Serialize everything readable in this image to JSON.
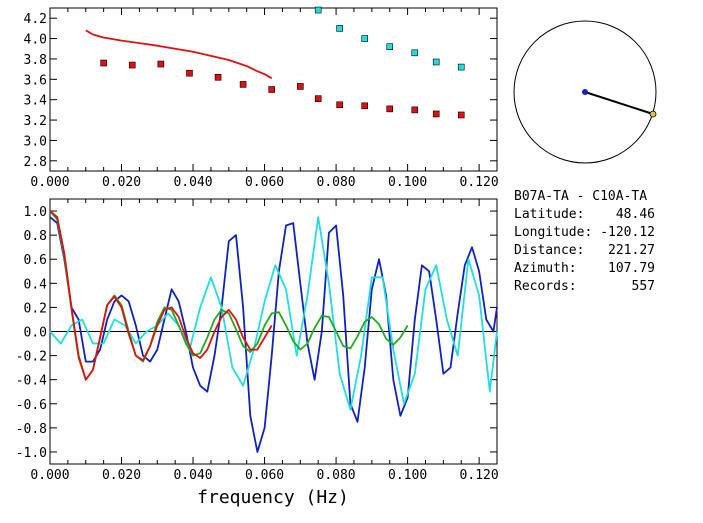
{
  "chart_data": [
    {
      "type": "scatter",
      "xlim": [
        0,
        0.125
      ],
      "ylim": [
        2.7,
        4.3
      ],
      "x_ticks": [
        "0.000",
        "0.020",
        "0.040",
        "0.060",
        "0.080",
        "0.100",
        "0.120"
      ],
      "y_ticks": [
        "2.8",
        "3.0",
        "3.2",
        "3.4",
        "3.6",
        "3.8",
        "4.0",
        "4.2"
      ],
      "grid": false,
      "series": [
        {
          "marker": "square",
          "color": "#dd1111",
          "x": [
            0.015,
            0.023,
            0.031,
            0.039,
            0.047,
            0.054,
            0.062,
            0.07,
            0.075,
            0.081,
            0.088,
            0.095,
            0.102,
            0.108,
            0.115
          ],
          "y": [
            3.76,
            3.74,
            3.75,
            3.66,
            3.62,
            3.55,
            3.5,
            3.53,
            3.41,
            3.35,
            3.34,
            3.31,
            3.3,
            3.26,
            3.25
          ]
        },
        {
          "marker": "square",
          "color": "#22dddd",
          "x": [
            0.075,
            0.081,
            0.088,
            0.095,
            0.102,
            0.108,
            0.115
          ],
          "y": [
            4.28,
            4.1,
            4.0,
            3.92,
            3.86,
            3.77,
            3.72
          ]
        },
        {
          "line": true,
          "color": "#dd1111",
          "x": [
            0.01,
            0.012,
            0.015,
            0.02,
            0.025,
            0.03,
            0.035,
            0.04,
            0.045,
            0.05,
            0.055,
            0.058,
            0.06,
            0.062
          ],
          "y": [
            4.08,
            4.04,
            4.01,
            3.98,
            3.955,
            3.93,
            3.9,
            3.87,
            3.83,
            3.79,
            3.73,
            3.68,
            3.65,
            3.61
          ]
        }
      ]
    },
    {
      "type": "line",
      "xlim": [
        0,
        0.125
      ],
      "ylim": [
        -1.1,
        1.1
      ],
      "x_ticks": [
        "0.000",
        "0.020",
        "0.040",
        "0.060",
        "0.080",
        "0.100",
        "0.120"
      ],
      "y_ticks": [
        "1.0",
        "0.8",
        "0.6",
        "0.4",
        "0.2",
        "0.0",
        "-0.2",
        "-0.4",
        "-0.6",
        "-0.8",
        "-1.0"
      ],
      "xlabel": "frequency (Hz)",
      "reference_line_y": 0,
      "series": [
        {
          "color": "#1122bb",
          "x": [
            0.0,
            0.002,
            0.004,
            0.006,
            0.008,
            0.01,
            0.012,
            0.014,
            0.016,
            0.018,
            0.02,
            0.022,
            0.024,
            0.026,
            0.028,
            0.03,
            0.032,
            0.034,
            0.036,
            0.038,
            0.04,
            0.042,
            0.044,
            0.046,
            0.048,
            0.05,
            0.052,
            0.054,
            0.056,
            0.058,
            0.06,
            0.062,
            0.064,
            0.066,
            0.068,
            0.07,
            0.072,
            0.074,
            0.076,
            0.078,
            0.08,
            0.082,
            0.084,
            0.086,
            0.088,
            0.09,
            0.092,
            0.094,
            0.096,
            0.098,
            0.1,
            0.102,
            0.104,
            0.106,
            0.108,
            0.11,
            0.112,
            0.114,
            0.116,
            0.118,
            0.12,
            0.122,
            0.124,
            0.125
          ],
          "y": [
            0.95,
            0.9,
            0.6,
            0.2,
            0.1,
            -0.25,
            -0.25,
            -0.15,
            0.1,
            0.25,
            0.3,
            0.25,
            0.05,
            -0.2,
            -0.25,
            -0.15,
            0.1,
            0.35,
            0.25,
            0.0,
            -0.3,
            -0.45,
            -0.5,
            -0.2,
            0.2,
            0.75,
            0.8,
            0.2,
            -0.7,
            -1.0,
            -0.8,
            -0.2,
            0.5,
            0.88,
            0.9,
            0.4,
            -0.1,
            -0.4,
            0.0,
            0.82,
            0.88,
            0.3,
            -0.6,
            -0.75,
            -0.3,
            0.35,
            0.6,
            0.3,
            -0.4,
            -0.7,
            -0.55,
            0.1,
            0.55,
            0.5,
            0.1,
            -0.35,
            -0.3,
            0.15,
            0.55,
            0.7,
            0.5,
            0.1,
            0.0,
            0.2
          ]
        },
        {
          "color": "#22dddd",
          "x": [
            0.0,
            0.003,
            0.006,
            0.009,
            0.012,
            0.015,
            0.018,
            0.021,
            0.024,
            0.027,
            0.03,
            0.033,
            0.036,
            0.039,
            0.042,
            0.045,
            0.048,
            0.051,
            0.054,
            0.057,
            0.06,
            0.063,
            0.066,
            0.069,
            0.072,
            0.075,
            0.078,
            0.081,
            0.084,
            0.087,
            0.09,
            0.093,
            0.096,
            0.099,
            0.102,
            0.105,
            0.108,
            0.111,
            0.114,
            0.117,
            0.12,
            0.123,
            0.125
          ],
          "y": [
            0.0,
            -0.1,
            0.05,
            0.1,
            -0.1,
            -0.1,
            0.1,
            0.05,
            -0.1,
            0.0,
            0.05,
            0.15,
            0.05,
            -0.15,
            0.2,
            0.45,
            0.2,
            -0.3,
            -0.45,
            -0.15,
            0.25,
            0.55,
            0.35,
            -0.2,
            0.3,
            0.95,
            0.4,
            -0.35,
            -0.65,
            -0.2,
            0.45,
            0.45,
            -0.15,
            -0.6,
            -0.35,
            0.35,
            0.55,
            0.1,
            -0.2,
            0.6,
            0.3,
            -0.5,
            0.0
          ]
        },
        {
          "color": "#22aa22",
          "x": [
            0.0,
            0.002,
            0.004,
            0.006,
            0.008,
            0.01,
            0.012,
            0.014,
            0.016,
            0.018,
            0.02,
            0.022,
            0.024,
            0.026,
            0.028,
            0.03,
            0.032,
            0.034,
            0.036,
            0.038,
            0.04,
            0.042,
            0.044,
            0.046,
            0.048,
            0.05,
            0.052,
            0.054,
            0.056,
            0.058,
            0.06,
            0.062,
            0.064,
            0.066,
            0.068,
            0.07,
            0.072,
            0.074,
            0.076,
            0.078,
            0.08,
            0.082,
            0.084,
            0.086,
            0.088,
            0.09,
            0.092,
            0.094,
            0.096,
            0.098,
            0.1
          ],
          "y": [
            1.0,
            0.93,
            0.62,
            0.18,
            -0.22,
            -0.4,
            -0.32,
            -0.05,
            0.22,
            0.3,
            0.22,
            0.0,
            -0.2,
            -0.25,
            -0.12,
            0.08,
            0.2,
            0.18,
            0.05,
            -0.1,
            -0.2,
            -0.18,
            -0.05,
            0.1,
            0.18,
            0.15,
            0.02,
            -0.12,
            -0.17,
            -0.1,
            0.05,
            0.15,
            0.16,
            0.05,
            -0.08,
            -0.15,
            -0.1,
            0.03,
            0.13,
            0.12,
            0.0,
            -0.12,
            -0.14,
            -0.04,
            0.08,
            0.12,
            0.06,
            -0.06,
            -0.11,
            -0.05,
            0.05
          ]
        },
        {
          "color": "#dd1111",
          "x": [
            0.0,
            0.002,
            0.004,
            0.006,
            0.008,
            0.01,
            0.012,
            0.014,
            0.016,
            0.018,
            0.02,
            0.022,
            0.024,
            0.026,
            0.028,
            0.03,
            0.032,
            0.034,
            0.036,
            0.038,
            0.04,
            0.042,
            0.044,
            0.046,
            0.048,
            0.05,
            0.052,
            0.054,
            0.056,
            0.058,
            0.06,
            0.062
          ],
          "y": [
            1.0,
            0.95,
            0.65,
            0.2,
            -0.2,
            -0.4,
            -0.32,
            -0.05,
            0.22,
            0.29,
            0.2,
            -0.02,
            -0.2,
            -0.24,
            -0.12,
            0.05,
            0.18,
            0.2,
            0.12,
            -0.05,
            -0.18,
            -0.22,
            -0.15,
            0.0,
            0.12,
            0.18,
            0.1,
            -0.05,
            -0.15,
            -0.15,
            -0.05,
            0.05
          ]
        }
      ]
    }
  ],
  "station_map": {
    "circle_color": "#000000",
    "station_dot_color": "#1122bb",
    "end_marker_color": "#e6c34a"
  },
  "info": {
    "pair": "B07A-TA  - C10A-TA",
    "rows": [
      {
        "label": "Latitude:",
        "value": "48.46"
      },
      {
        "label": "Longitude:",
        "value": "-120.12"
      },
      {
        "label": "Distance:",
        "value": "221.27"
      },
      {
        "label": "Azimuth:",
        "value": "107.79"
      },
      {
        "label": "Records:",
        "value": "557"
      }
    ]
  }
}
